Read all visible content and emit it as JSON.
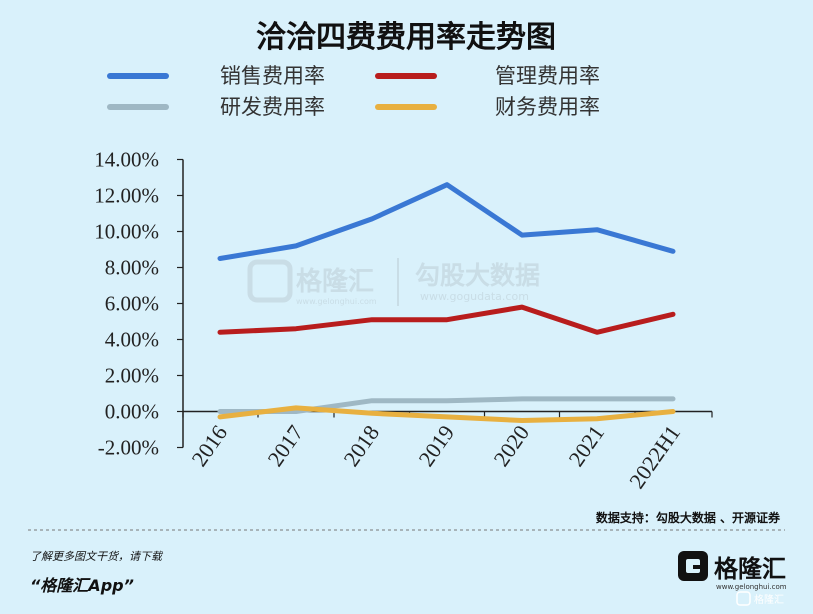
{
  "chart_data": {
    "type": "line",
    "title": "洽洽四费费用率走势图",
    "categories": [
      "2016",
      "2017",
      "2018",
      "2019",
      "2020",
      "2021",
      "2022H1"
    ],
    "ylim": [
      -2,
      14
    ],
    "yticks": [
      "-2.00%",
      "0.00%",
      "2.00%",
      "4.00%",
      "6.00%",
      "8.00%",
      "10.00%",
      "12.00%",
      "14.00%"
    ],
    "ytick_values": [
      -2,
      0,
      2,
      4,
      6,
      8,
      10,
      12,
      14
    ],
    "grid": false,
    "legend_position": "top",
    "series": [
      {
        "name": "销售费用率",
        "color": "#3a78d4",
        "values": [
          8.5,
          9.2,
          10.7,
          12.6,
          9.8,
          10.1,
          8.9
        ]
      },
      {
        "name": "管理费用率",
        "color": "#b81d1d",
        "values": [
          4.4,
          4.6,
          5.1,
          5.1,
          5.8,
          4.4,
          5.4
        ]
      },
      {
        "name": "研发费用率",
        "color": "#9fb8c4",
        "values": [
          0.0,
          0.0,
          0.6,
          0.6,
          0.7,
          0.7,
          0.7
        ]
      },
      {
        "name": "财务费用率",
        "color": "#e8b040",
        "values": [
          -0.3,
          0.2,
          -0.1,
          -0.3,
          -0.5,
          -0.4,
          0.0
        ]
      }
    ]
  },
  "watermark": {
    "left_name": "格隆汇",
    "left_domain": "www.gelonghui.com",
    "right_name": "勾股大数据",
    "right_domain": "www.gogudata.com"
  },
  "source_text": "数据支持：勾股大数据 、开源证券",
  "footer": {
    "line1": "了解更多图文干货，请下载",
    "line2": "“格隆汇App”",
    "brand_name": "格隆汇",
    "brand_domain": "www.gelonghui.com",
    "corner_tag": "格隆汇"
  }
}
